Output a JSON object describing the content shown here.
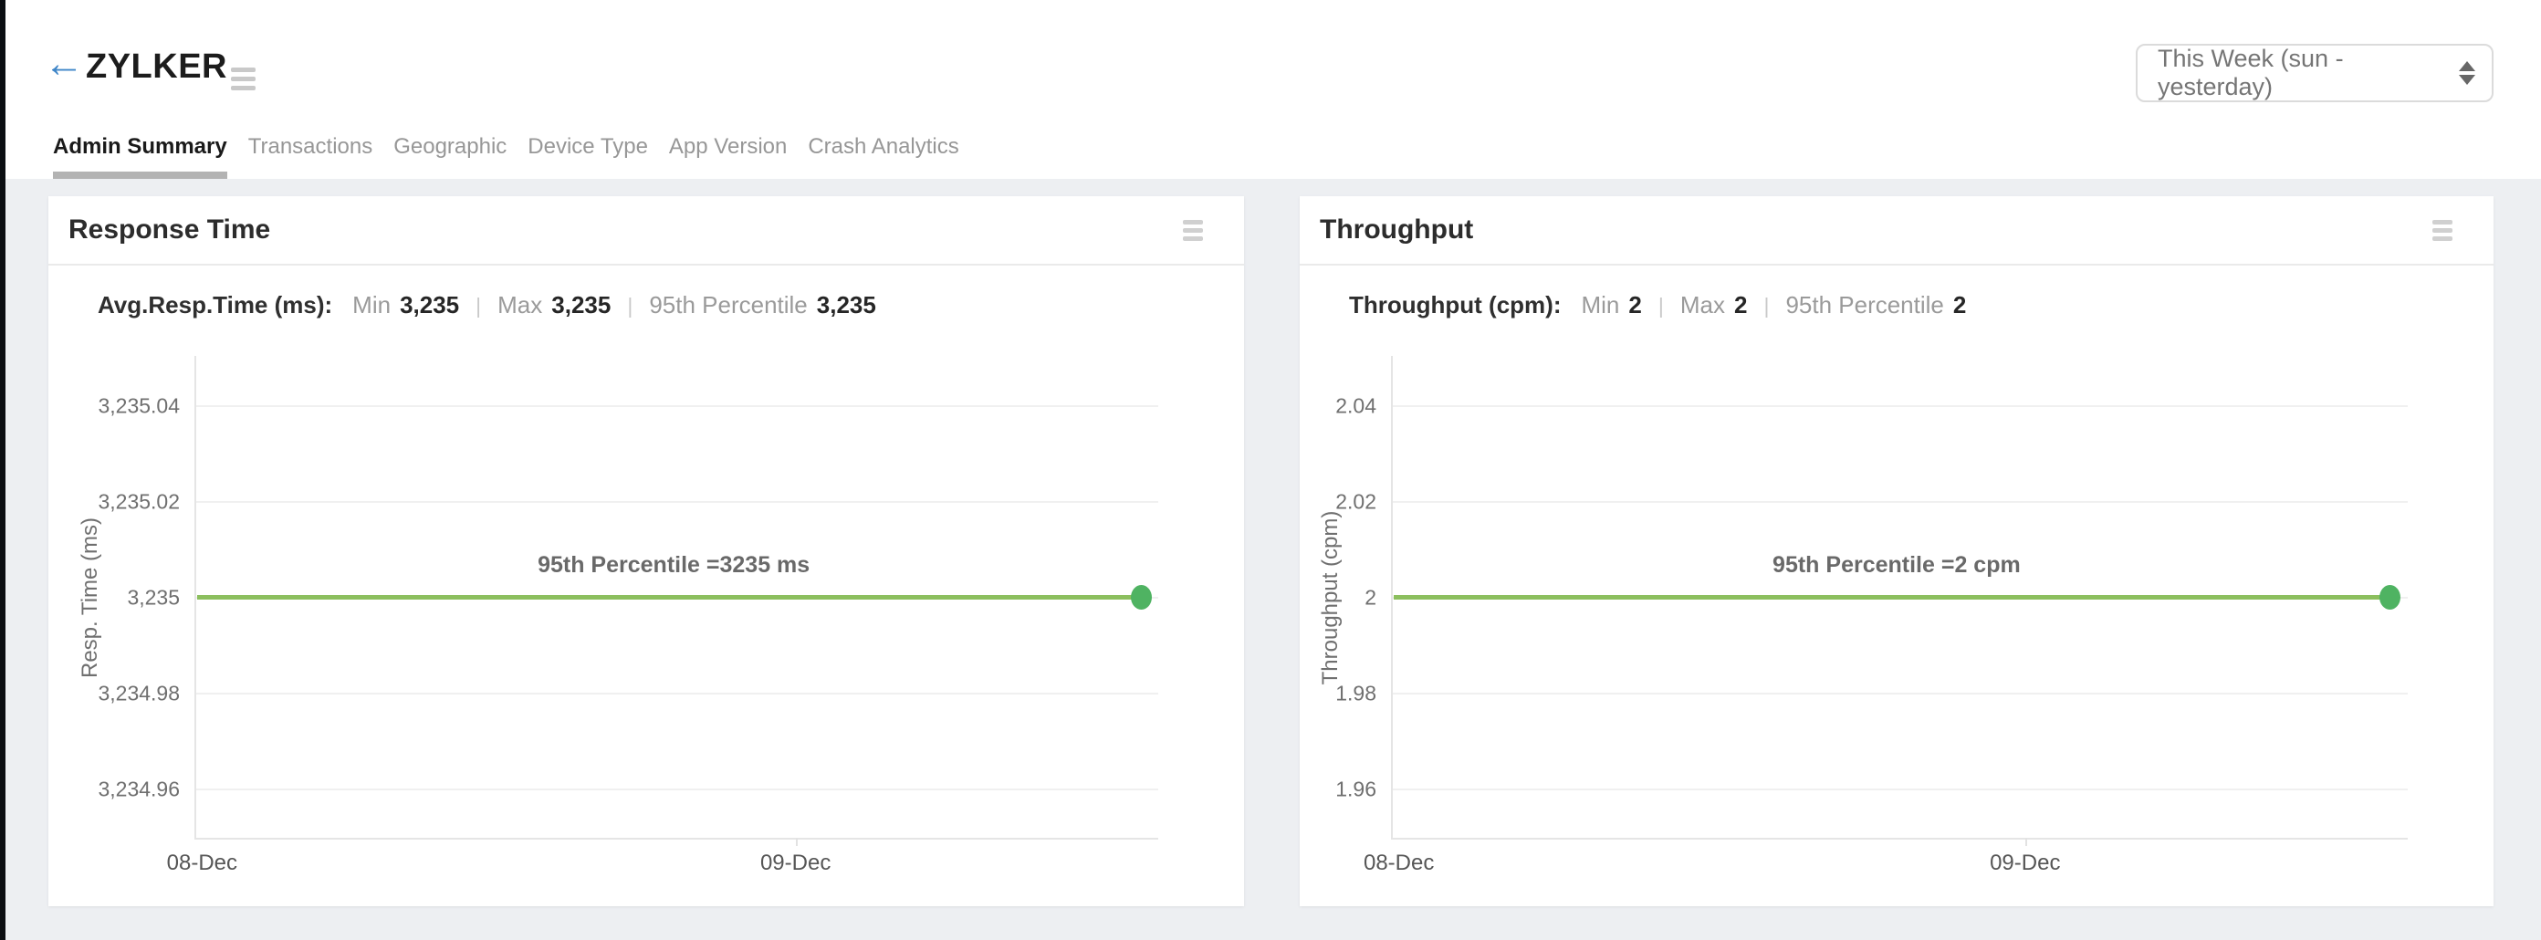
{
  "ui": {
    "separator": "|"
  },
  "icons": {
    "back": "←"
  },
  "header": {
    "app_title": "ZYLKER",
    "time_range_value": "This Week (sun - yesterday)"
  },
  "tabs": [
    {
      "label": "Admin Summary",
      "active": true
    },
    {
      "label": "Transactions",
      "active": false
    },
    {
      "label": "Geographic",
      "active": false
    },
    {
      "label": "Device Type",
      "active": false
    },
    {
      "label": "App Version",
      "active": false
    },
    {
      "label": "Crash Analytics",
      "active": false
    }
  ],
  "panels": [
    {
      "title": "Response Time",
      "stats": {
        "metric": "Avg.Resp.Time (ms):",
        "min_label": "Min",
        "min_value": "3,235",
        "max_label": "Max",
        "max_value": "3,235",
        "p95_label": "95th Percentile",
        "p95_value": "3,235"
      },
      "chart": {
        "y_axis_label": "Resp. Time (ms)",
        "y_ticks": [
          "3,235.04",
          "3,235.02",
          "3,235",
          "3,234.98",
          "3,234.96"
        ],
        "x_ticks": [
          "08-Dec",
          "09-Dec"
        ],
        "annotation": "95th Percentile =3235 ms"
      }
    },
    {
      "title": "Throughput",
      "stats": {
        "metric": "Throughput (cpm):",
        "min_label": "Min",
        "min_value": "2",
        "max_label": "Max",
        "max_value": "2",
        "p95_label": "95th Percentile",
        "p95_value": "2"
      },
      "chart": {
        "y_axis_label": "Throughput (cpm)",
        "y_ticks": [
          "2.04",
          "2.02",
          "2",
          "1.98",
          "1.96"
        ],
        "x_ticks": [
          "08-Dec",
          "09-Dec"
        ],
        "annotation": "95th Percentile =2 cpm"
      }
    }
  ],
  "chart_data": [
    {
      "type": "line",
      "title": "Response Time",
      "xlabel": "",
      "ylabel": "Resp. Time (ms)",
      "x_ticks": [
        "08-Dec",
        "09-Dec"
      ],
      "series": [
        {
          "name": "95th Percentile",
          "unit": "ms",
          "values": [
            3235,
            3235
          ]
        }
      ],
      "yticks": [
        3235.04,
        3235.02,
        3235,
        3234.98,
        3234.96
      ],
      "ylim": [
        3234.95,
        3235.05
      ],
      "annotation": "95th Percentile =3235 ms",
      "stats": {
        "min": 3235,
        "max": 3235,
        "p95": 3235
      },
      "grid": true,
      "legend": false,
      "line_color": "#8cbf5e",
      "marker_color": "#4fb362"
    },
    {
      "type": "line",
      "title": "Throughput",
      "xlabel": "",
      "ylabel": "Throughput (cpm)",
      "x_ticks": [
        "08-Dec",
        "09-Dec"
      ],
      "series": [
        {
          "name": "95th Percentile",
          "unit": "cpm",
          "values": [
            2,
            2
          ]
        }
      ],
      "yticks": [
        2.04,
        2.02,
        2,
        1.98,
        1.96
      ],
      "ylim": [
        1.95,
        2.05
      ],
      "annotation": "95th Percentile =2 cpm",
      "stats": {
        "min": 2,
        "max": 2,
        "p95": 2
      },
      "grid": true,
      "legend": false,
      "line_color": "#8cbf5e",
      "marker_color": "#4fb362"
    }
  ],
  "colors": {
    "page_background": "#edeff2",
    "panel_background": "#ffffff",
    "line_green": "#8cbf5e",
    "marker_green": "#4fb362",
    "accent_blue": "#3f86c8",
    "tab_underline": "#b3b3b3"
  }
}
